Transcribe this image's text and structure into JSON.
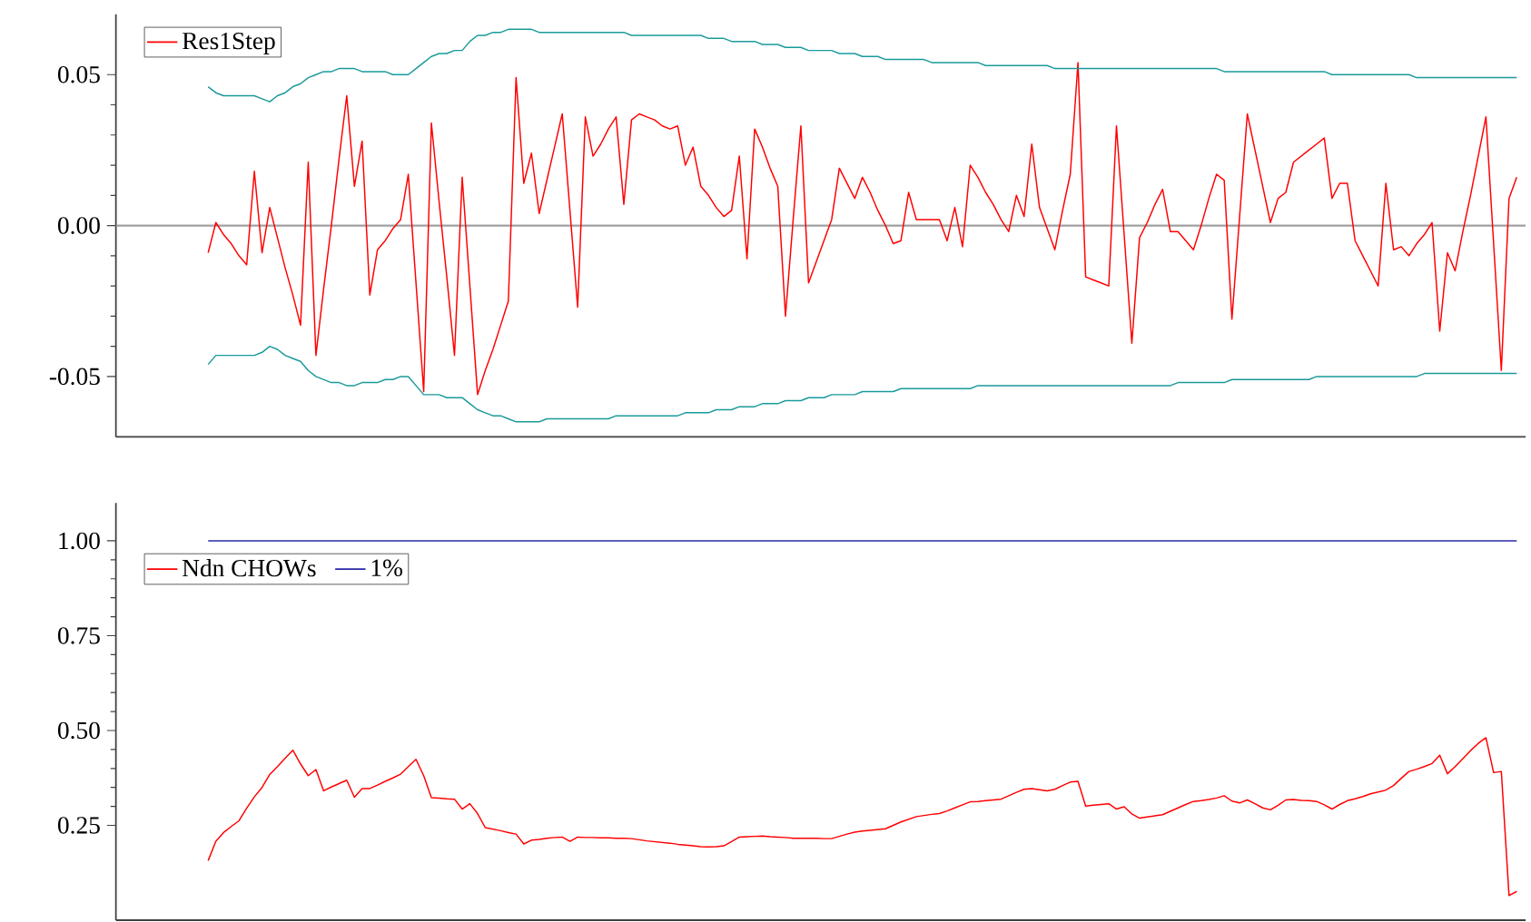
{
  "chart_data": [
    {
      "type": "line",
      "categories": [
        null,
        null,
        null,
        null,
        null,
        null,
        null,
        null,
        null,
        null,
        null,
        null,
        null,
        null,
        null,
        null,
        null,
        null,
        null,
        null,
        null,
        null,
        null,
        null,
        null,
        null,
        null,
        null,
        null,
        null,
        null,
        null,
        null,
        null,
        null,
        null,
        null,
        null,
        null,
        null,
        null,
        null,
        null,
        null,
        null,
        null,
        null,
        null,
        null,
        null,
        null,
        null,
        null,
        null,
        null,
        null,
        null,
        null,
        null,
        null,
        null,
        null,
        null,
        null,
        null,
        null,
        null,
        null,
        null,
        null,
        null,
        null,
        null,
        null,
        null,
        null,
        null,
        null,
        null,
        null,
        null,
        null,
        null,
        null,
        null,
        null,
        null,
        null,
        null,
        null,
        null,
        null,
        null,
        null,
        null,
        null,
        null,
        null,
        null,
        null,
        null,
        null,
        null,
        null,
        null,
        null,
        null,
        null,
        null,
        null,
        null,
        null,
        null,
        null,
        null,
        null,
        null,
        null,
        null,
        null,
        null,
        null,
        null,
        null,
        null,
        null,
        null,
        null,
        null,
        null,
        null,
        null,
        null,
        null,
        null,
        null,
        null,
        null,
        null,
        null,
        null,
        null,
        null,
        null,
        null,
        null,
        null,
        null,
        null,
        null,
        null,
        null,
        null,
        null,
        null,
        null,
        null,
        null,
        null,
        null,
        null,
        null,
        null,
        null,
        null,
        null,
        null,
        null,
        null,
        null,
        null
      ],
      "series": [
        {
          "name": "Res1Step",
          "color": "#ff0000",
          "values": [
            -0.009,
            0.001,
            -0.003,
            -0.006,
            -0.01,
            -0.013,
            0.018,
            -0.009,
            0.006,
            -0.004,
            -0.014,
            -0.023,
            -0.033,
            0.021,
            -0.043,
            -0.021,
            0.0,
            0.022,
            0.043,
            0.013,
            0.028,
            -0.023,
            -0.008,
            -0.005,
            -0.001,
            0.002,
            0.017,
            -0.019,
            -0.055,
            0.034,
            0.008,
            -0.017,
            -0.043,
            0.016,
            -0.02,
            -0.056,
            -0.048,
            -0.041,
            -0.033,
            -0.025,
            0.049,
            0.014,
            0.024,
            0.004,
            0.015,
            0.026,
            0.037,
            0.005,
            -0.027,
            0.036,
            0.023,
            0.027,
            0.032,
            0.036,
            0.007,
            0.035,
            0.037,
            0.036,
            0.035,
            0.033,
            0.032,
            0.033,
            0.02,
            0.026,
            0.013,
            0.01,
            0.006,
            0.003,
            0.005,
            0.023,
            -0.011,
            0.032,
            0.026,
            0.019,
            0.013,
            -0.03,
            0.002,
            0.033,
            -0.019,
            -0.012,
            -0.005,
            0.002,
            0.019,
            0.014,
            0.009,
            0.016,
            0.011,
            0.005,
            0.0,
            -0.006,
            -0.005,
            0.011,
            0.002,
            0.002,
            0.002,
            0.002,
            -0.005,
            0.006,
            -0.007,
            0.02,
            0.016,
            0.011,
            0.007,
            0.002,
            -0.002,
            0.01,
            0.003,
            0.027,
            0.006,
            -0.001,
            -0.008,
            0.005,
            0.017,
            0.054,
            -0.017,
            -0.018,
            -0.019,
            -0.02,
            0.033,
            -0.003,
            -0.039,
            -0.004,
            0.001,
            0.007,
            0.012,
            -0.002,
            -0.002,
            -0.005,
            -0.008,
            0.0,
            0.009,
            0.017,
            0.015,
            -0.031,
            0.003,
            0.037,
            0.025,
            0.013,
            0.001,
            0.009,
            0.011,
            0.021,
            0.023,
            0.025,
            0.027,
            0.029,
            0.009,
            0.014,
            0.014,
            -0.005,
            -0.01,
            -0.015,
            -0.02,
            0.014,
            -0.008,
            -0.007,
            -0.01,
            -0.006,
            -0.003,
            0.001,
            -0.035,
            -0.009,
            -0.015,
            -0.002,
            0.01,
            0.023,
            0.036,
            -0.006,
            -0.048,
            0.009,
            0.016
          ]
        },
        {
          "color": "#1a9a9a",
          "values": [
            0.046,
            0.044,
            0.043,
            0.043,
            0.043,
            0.043,
            0.043,
            0.042,
            0.041,
            0.043,
            0.044,
            0.046,
            0.047,
            0.049,
            0.05,
            0.051,
            0.051,
            0.052,
            0.052,
            0.052,
            0.051,
            0.051,
            0.051,
            0.051,
            0.05,
            0.05,
            0.05,
            0.052,
            0.054,
            0.056,
            0.057,
            0.057,
            0.058,
            0.058,
            0.061,
            0.063,
            0.063,
            0.064,
            0.064,
            0.065,
            0.065,
            0.065,
            0.065,
            0.064,
            0.064,
            0.064,
            0.064,
            0.064,
            0.064,
            0.064,
            0.064,
            0.064,
            0.064,
            0.064,
            0.064,
            0.063,
            0.063,
            0.063,
            0.063,
            0.063,
            0.063,
            0.063,
            0.063,
            0.063,
            0.063,
            0.062,
            0.062,
            0.062,
            0.061,
            0.061,
            0.061,
            0.061,
            0.06,
            0.06,
            0.06,
            0.059,
            0.059,
            0.059,
            0.058,
            0.058,
            0.058,
            0.058,
            0.057,
            0.057,
            0.057,
            0.056,
            0.056,
            0.056,
            0.055,
            0.055,
            0.055,
            0.055,
            0.055,
            0.055,
            0.054,
            0.054,
            0.054,
            0.054,
            0.054,
            0.054,
            0.054,
            0.053,
            0.053,
            0.053,
            0.053,
            0.053,
            0.053,
            0.053,
            0.053,
            0.053,
            0.052,
            0.052,
            0.052,
            0.052,
            0.052,
            0.052,
            0.052,
            0.052,
            0.052,
            0.052,
            0.052,
            0.052,
            0.052,
            0.052,
            0.052,
            0.052,
            0.052,
            0.052,
            0.052,
            0.052,
            0.052,
            0.052,
            0.051,
            0.051,
            0.051,
            0.051,
            0.051,
            0.051,
            0.051,
            0.051,
            0.051,
            0.051,
            0.051,
            0.051,
            0.051,
            0.051,
            0.05,
            0.05,
            0.05,
            0.05,
            0.05,
            0.05,
            0.05,
            0.05,
            0.05,
            0.05,
            0.05,
            0.049,
            0.049,
            0.049,
            0.049,
            0.049,
            0.049,
            0.049,
            0.049,
            0.049,
            0.049,
            0.049,
            0.049,
            0.049,
            0.049
          ]
        },
        {
          "color": "#1a9a9a",
          "values": [
            -0.046,
            -0.043,
            -0.043,
            -0.043,
            -0.043,
            -0.043,
            -0.043,
            -0.042,
            -0.04,
            -0.041,
            -0.043,
            -0.044,
            -0.045,
            -0.048,
            -0.05,
            -0.051,
            -0.052,
            -0.052,
            -0.053,
            -0.053,
            -0.052,
            -0.052,
            -0.052,
            -0.051,
            -0.051,
            -0.05,
            -0.05,
            -0.053,
            -0.056,
            -0.056,
            -0.056,
            -0.057,
            -0.057,
            -0.057,
            -0.059,
            -0.061,
            -0.062,
            -0.063,
            -0.063,
            -0.064,
            -0.065,
            -0.065,
            -0.065,
            -0.065,
            -0.064,
            -0.064,
            -0.064,
            -0.064,
            -0.064,
            -0.064,
            -0.064,
            -0.064,
            -0.064,
            -0.063,
            -0.063,
            -0.063,
            -0.063,
            -0.063,
            -0.063,
            -0.063,
            -0.063,
            -0.063,
            -0.062,
            -0.062,
            -0.062,
            -0.062,
            -0.061,
            -0.061,
            -0.061,
            -0.06,
            -0.06,
            -0.06,
            -0.059,
            -0.059,
            -0.059,
            -0.058,
            -0.058,
            -0.058,
            -0.057,
            -0.057,
            -0.057,
            -0.056,
            -0.056,
            -0.056,
            -0.056,
            -0.055,
            -0.055,
            -0.055,
            -0.055,
            -0.055,
            -0.054,
            -0.054,
            -0.054,
            -0.054,
            -0.054,
            -0.054,
            -0.054,
            -0.054,
            -0.054,
            -0.054,
            -0.053,
            -0.053,
            -0.053,
            -0.053,
            -0.053,
            -0.053,
            -0.053,
            -0.053,
            -0.053,
            -0.053,
            -0.053,
            -0.053,
            -0.053,
            -0.053,
            -0.053,
            -0.053,
            -0.053,
            -0.053,
            -0.053,
            -0.053,
            -0.053,
            -0.053,
            -0.053,
            -0.053,
            -0.053,
            -0.053,
            -0.052,
            -0.052,
            -0.052,
            -0.052,
            -0.052,
            -0.052,
            -0.052,
            -0.051,
            -0.051,
            -0.051,
            -0.051,
            -0.051,
            -0.051,
            -0.051,
            -0.051,
            -0.051,
            -0.051,
            -0.051,
            -0.05,
            -0.05,
            -0.05,
            -0.05,
            -0.05,
            -0.05,
            -0.05,
            -0.05,
            -0.05,
            -0.05,
            -0.05,
            -0.05,
            -0.05,
            -0.05,
            -0.049,
            -0.049,
            -0.049,
            -0.049,
            -0.049,
            -0.049,
            -0.049,
            -0.049,
            -0.049,
            -0.049,
            -0.049,
            -0.049,
            -0.049
          ]
        }
      ],
      "ylim": [
        -0.07,
        0.07
      ],
      "yticks": [
        -0.05,
        {
          "value": 0,
          "label": "0.00"
        },
        0.05
      ],
      "ref_lines": [
        {
          "axis": "y",
          "value": 0,
          "color": "#a0a0a0"
        }
      ],
      "legend": "top left",
      "tick_labels": "y"
    },
    {
      "type": "line",
      "categories": [
        null,
        null,
        null,
        null,
        null,
        null,
        null,
        null,
        null,
        null,
        null,
        null,
        null,
        null,
        null,
        null,
        null,
        null,
        null,
        null,
        null,
        null,
        null,
        null,
        null,
        null,
        null,
        null,
        null,
        null,
        null,
        null,
        null,
        null,
        null,
        null,
        null,
        null,
        null,
        null,
        null,
        null,
        null,
        null,
        null,
        null,
        null,
        null,
        null,
        null,
        null,
        null,
        null,
        null,
        null,
        null,
        null,
        null,
        null,
        null,
        null,
        null,
        null,
        null,
        null,
        null,
        null,
        null,
        null,
        null,
        null,
        null,
        null,
        null,
        null,
        null,
        null,
        null,
        null,
        null,
        null,
        null,
        null,
        null,
        null,
        null,
        null,
        null,
        null,
        null,
        null,
        null,
        null,
        null,
        null,
        null,
        null,
        null,
        null,
        null,
        null,
        null,
        null,
        null,
        null,
        null,
        null,
        null,
        null,
        null,
        null,
        null,
        null,
        null,
        null,
        null,
        null,
        null,
        null,
        null,
        null,
        null,
        null,
        null,
        null,
        null,
        null,
        null,
        null,
        null,
        null,
        null,
        null,
        null,
        null,
        null,
        null,
        null,
        null,
        null,
        null,
        null,
        null,
        null,
        null,
        null,
        null,
        null,
        null,
        null,
        null,
        null,
        null,
        null,
        null,
        null,
        null,
        null,
        null,
        null,
        null,
        null,
        null,
        null,
        null,
        null,
        null,
        null,
        null,
        null,
        null
      ],
      "series": [
        {
          "name": "Ndn CHOWs",
          "color": "#ff0000",
          "values": [
            0.157,
            0.208,
            0.231,
            0.247,
            0.262,
            0.295,
            0.325,
            0.35,
            0.384,
            0.405,
            0.427,
            0.448,
            0.412,
            0.381,
            0.397,
            0.341,
            0.351,
            0.36,
            0.369,
            0.324,
            0.347,
            0.347,
            0.356,
            0.366,
            0.375,
            0.385,
            0.405,
            0.424,
            0.381,
            0.323,
            0.322,
            0.32,
            0.319,
            0.293,
            0.307,
            0.281,
            0.244,
            0.24,
            0.236,
            0.231,
            0.227,
            0.201,
            0.211,
            0.213,
            0.216,
            0.218,
            0.219,
            0.208,
            0.219,
            0.218,
            0.218,
            0.217,
            0.217,
            0.216,
            0.216,
            0.215,
            0.212,
            0.209,
            0.207,
            0.205,
            0.203,
            0.2,
            0.198,
            0.196,
            0.194,
            0.193,
            0.194,
            0.196,
            0.207,
            0.219,
            0.22,
            0.221,
            0.222,
            0.22,
            0.219,
            0.218,
            0.216,
            0.216,
            0.216,
            0.216,
            0.215,
            0.215,
            0.221,
            0.227,
            0.232,
            0.235,
            0.237,
            0.239,
            0.241,
            0.25,
            0.259,
            0.266,
            0.273,
            0.276,
            0.279,
            0.281,
            0.288,
            0.296,
            0.304,
            0.312,
            0.313,
            0.315,
            0.317,
            0.319,
            0.328,
            0.337,
            0.345,
            0.347,
            0.344,
            0.341,
            0.345,
            0.355,
            0.364,
            0.366,
            0.301,
            0.303,
            0.305,
            0.307,
            0.293,
            0.299,
            0.28,
            0.269,
            0.272,
            0.275,
            0.278,
            0.287,
            0.296,
            0.305,
            0.313,
            0.315,
            0.318,
            0.322,
            0.328,
            0.314,
            0.309,
            0.317,
            0.307,
            0.296,
            0.291,
            0.303,
            0.317,
            0.318,
            0.316,
            0.315,
            0.313,
            0.304,
            0.293,
            0.305,
            0.315,
            0.32,
            0.326,
            0.333,
            0.338,
            0.343,
            0.355,
            0.374,
            0.392,
            0.398,
            0.405,
            0.413,
            0.435,
            0.386,
            0.405,
            0.426,
            0.447,
            0.466,
            0.481,
            0.389,
            0.392,
            0.065,
            0.076
          ]
        },
        {
          "name": "1%",
          "color": "#2a2aa8",
          "values": [
            1,
            1,
            1,
            1,
            1,
            1,
            1,
            1,
            1,
            1,
            1,
            1,
            1,
            1,
            1,
            1,
            1,
            1,
            1,
            1,
            1,
            1,
            1,
            1,
            1,
            1,
            1,
            1,
            1,
            1,
            1,
            1,
            1,
            1,
            1,
            1,
            1,
            1,
            1,
            1,
            1,
            1,
            1,
            1,
            1,
            1,
            1,
            1,
            1,
            1,
            1,
            1,
            1,
            1,
            1,
            1,
            1,
            1,
            1,
            1,
            1,
            1,
            1,
            1,
            1,
            1,
            1,
            1,
            1,
            1,
            1,
            1,
            1,
            1,
            1,
            1,
            1,
            1,
            1,
            1,
            1,
            1,
            1,
            1,
            1,
            1,
            1,
            1,
            1,
            1,
            1,
            1,
            1,
            1,
            1,
            1,
            1,
            1,
            1,
            1,
            1,
            1,
            1,
            1,
            1,
            1,
            1,
            1,
            1,
            1,
            1,
            1,
            1,
            1,
            1,
            1,
            1,
            1,
            1,
            1,
            1,
            1,
            1,
            1,
            1,
            1,
            1,
            1,
            1,
            1,
            1,
            1,
            1,
            1,
            1,
            1,
            1,
            1,
            1,
            1,
            1,
            1,
            1,
            1,
            1,
            1,
            1,
            1,
            1,
            1,
            1,
            1,
            1,
            1,
            1,
            1,
            1,
            1,
            1,
            1,
            1,
            1,
            1,
            1,
            1,
            1,
            1,
            1,
            1,
            1,
            1
          ]
        }
      ],
      "ylim": [
        0,
        1.1
      ],
      "yticks": [
        {
          "value": 0.25,
          "label": "0.25"
        },
        {
          "value": 0.5,
          "label": "0.50"
        },
        0.75,
        {
          "value": 1,
          "label": "1.00"
        }
      ],
      "legend": "top left",
      "tick_labels": "y"
    }
  ]
}
